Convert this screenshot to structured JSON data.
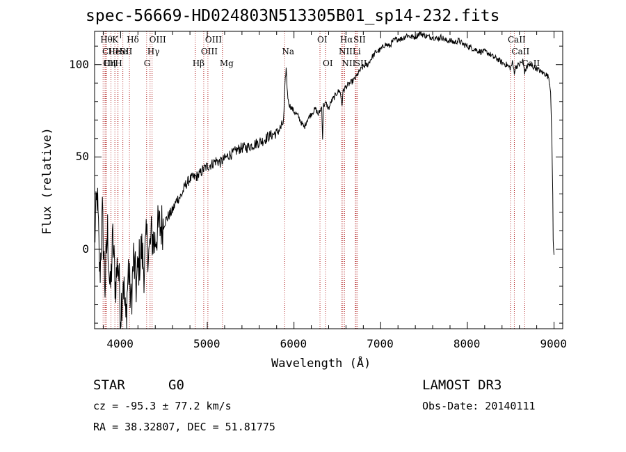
{
  "chart_data": {
    "type": "line",
    "title": "spec-56669-HD024803N513305B01_sp14-232.fits",
    "xlabel": "Wavelength (Å)",
    "ylabel": "Flux (relative)",
    "xlim": [
      3700,
      9100
    ],
    "ylim": [
      -43,
      118
    ],
    "xticks": [
      4000,
      5000,
      6000,
      7000,
      8000,
      9000
    ],
    "yticks": [
      0,
      50,
      100
    ],
    "grid": false,
    "line_color": "#000000",
    "marker_color": "#b22222",
    "series": [
      {
        "name": "flux",
        "x": [
          3700,
          3730,
          3760,
          3790,
          3820,
          3850,
          3880,
          3910,
          3940,
          3970,
          4000,
          4030,
          4060,
          4090,
          4120,
          4150,
          4180,
          4210,
          4240,
          4270,
          4300,
          4330,
          4360,
          4390,
          4420,
          4450,
          4500,
          4550,
          4600,
          4650,
          4700,
          4750,
          4800,
          4850,
          4900,
          4950,
          5000,
          5050,
          5100,
          5150,
          5200,
          5250,
          5300,
          5350,
          5400,
          5450,
          5500,
          5550,
          5600,
          5650,
          5700,
          5750,
          5800,
          5850,
          5880,
          5900,
          5910,
          5920,
          5935,
          5950,
          5980,
          6010,
          6050,
          6090,
          6120,
          6150,
          6180,
          6210,
          6250,
          6280,
          6300,
          6320,
          6330,
          6340,
          6370,
          6400,
          6430,
          6460,
          6500,
          6530,
          6555,
          6562,
          6570,
          6600,
          6650,
          6700,
          6750,
          6800,
          6850,
          6900,
          6950,
          7000,
          7050,
          7100,
          7150,
          7200,
          7250,
          7300,
          7350,
          7400,
          7450,
          7500,
          7550,
          7600,
          7650,
          7700,
          7750,
          7800,
          7850,
          7900,
          7950,
          8000,
          8050,
          8100,
          8150,
          8200,
          8250,
          8300,
          8350,
          8400,
          8450,
          8498,
          8520,
          8542,
          8560,
          8600,
          8640,
          8662,
          8700,
          8750,
          8800,
          8850,
          8900,
          8940,
          8960,
          8975,
          8985,
          8990,
          8995,
          9000
        ],
        "y": [
          5,
          30,
          -15,
          18,
          -20,
          10,
          -25,
          5,
          -20,
          -5,
          -35,
          -15,
          -40,
          -10,
          -30,
          -5,
          -20,
          -8,
          0,
          -10,
          5,
          -2,
          8,
          3,
          10,
          12,
          14,
          18,
          21,
          27,
          29,
          35,
          38,
          39,
          40,
          43,
          45,
          46,
          48,
          47,
          49,
          51,
          52,
          54,
          55,
          55,
          56,
          57,
          58,
          59,
          61,
          62,
          63,
          66,
          69,
          92,
          98,
          88,
          80,
          78,
          76,
          74,
          72,
          68,
          66,
          70,
          72,
          74,
          76,
          73,
          75,
          77,
          60,
          78,
          79,
          76,
          80,
          82,
          85,
          86,
          78,
          84,
          86,
          88,
          90,
          92,
          96,
          99,
          100,
          104,
          107,
          108,
          111,
          110,
          113,
          114,
          114,
          116,
          115,
          115,
          117,
          116,
          115,
          115,
          114,
          115,
          113,
          113,
          112,
          113,
          111,
          110,
          109,
          108,
          107,
          107,
          106,
          104,
          103,
          101,
          100,
          98,
          101,
          96,
          99,
          100,
          102,
          96,
          100,
          99,
          98,
          96,
          95,
          93,
          85,
          60,
          30,
          5,
          0,
          -3
        ]
      }
    ],
    "lines": [
      {
        "x": 3798,
        "label": "Hθ",
        "row": 1
      },
      {
        "x": 3820,
        "label": "CI",
        "row": 2
      },
      {
        "x": 3830,
        "label": "CII",
        "row": 3
      },
      {
        "x": 3835,
        "label": "Hη",
        "row": 3
      },
      {
        "x": 3889,
        "label": "He",
        "row": 2
      },
      {
        "x": 3934,
        "label": "K",
        "row": 1
      },
      {
        "x": 3968,
        "label": "H",
        "row": 3
      },
      {
        "x": 3970,
        "label": "He",
        "row": 2
      },
      {
        "x": 4026,
        "label": "SII",
        "row": 2
      },
      {
        "x": 4102,
        "label": "Hδ",
        "row": 1
      },
      {
        "x": 4300,
        "label": "G",
        "row": 3
      },
      {
        "x": 4340,
        "label": "Hγ",
        "row": 2
      },
      {
        "x": 4363,
        "label": "OIII",
        "row": 1
      },
      {
        "x": 4861,
        "label": "Hβ",
        "row": 3
      },
      {
        "x": 4959,
        "label": "OIII",
        "row": 2
      },
      {
        "x": 5007,
        "label": "OIII",
        "row": 1
      },
      {
        "x": 5175,
        "label": "Mg",
        "row": 3
      },
      {
        "x": 5893,
        "label": "Na",
        "row": 2
      },
      {
        "x": 6300,
        "label": "OI",
        "row": 1
      },
      {
        "x": 6364,
        "label": "OI",
        "row": 3
      },
      {
        "x": 6548,
        "label": "NII",
        "row": 2
      },
      {
        "x": 6563,
        "label": "Hα",
        "row": 1
      },
      {
        "x": 6584,
        "label": "NII",
        "row": 3
      },
      {
        "x": 6708,
        "label": "Li",
        "row": 2
      },
      {
        "x": 6717,
        "label": "SII",
        "row": 1
      },
      {
        "x": 6731,
        "label": "SII",
        "row": 3
      },
      {
        "x": 8498,
        "label": "CaII",
        "row": 1
      },
      {
        "x": 8542,
        "label": "CaII",
        "row": 2
      },
      {
        "x": 8662,
        "label": "CaII",
        "row": 3
      }
    ]
  },
  "info": {
    "object_class": "STAR",
    "subclass": "G0",
    "survey": "LAMOST DR3",
    "redshift": "cz = -95.3 ± 77.2 km/s",
    "obs_date": "Obs-Date: 20140111",
    "coords": "RA =  38.32807, DEC =  51.81775"
  }
}
